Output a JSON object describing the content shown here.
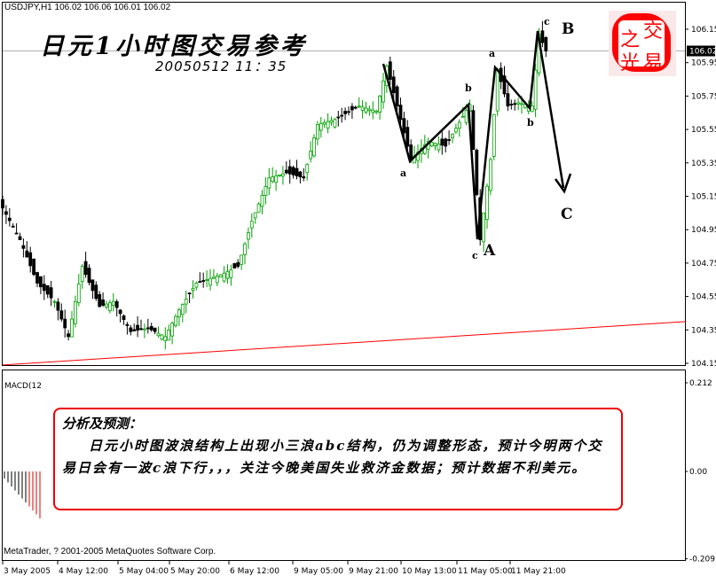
{
  "header": {
    "symbol_line": "USDJPY,H1  106.02 106.06 106.01 106.02",
    "title": "日元1小时图交易参考",
    "datetime": "20050512 11：35"
  },
  "stamp": {
    "chars": [
      "交",
      "之",
      "光",
      "易"
    ]
  },
  "note": {
    "heading": "分析及预测：",
    "body": "日元小时图波浪结构上出现小三浪abc结构，仍为调整形态，预计今明两个交易日会有一波c浪下行，，，关注今晚美国失业救济金数据；预计数据不利美元。"
  },
  "macd": {
    "label": "MACD(12"
  },
  "footer": {
    "copyright": "MetaTrader, ? 2001-2005 MetaQuotes Software Corp."
  },
  "colors": {
    "up": "#00a000",
    "down": "#000000",
    "trendline": "#ff0000",
    "accent": "#ff0000"
  },
  "chart_data": {
    "type": "candlestick",
    "symbol": "USDJPY",
    "timeframe": "H1",
    "current_price": 106.02,
    "y_ticks": [
      "106.15",
      "105.95",
      "105.75",
      "105.55",
      "105.35",
      "105.15",
      "104.95",
      "104.75",
      "104.55",
      "104.35",
      "104.15"
    ],
    "ylim": [
      104.13,
      106.24
    ],
    "x_ticks": [
      "3 May 2005",
      "4 May 12:00",
      "5 May 04:00",
      "5 May 20:00",
      "6 May 12:00",
      "9 May 05:00",
      "9 May 21:00",
      "10 May 13:00",
      "11 May 05:00",
      "11 May 21:00"
    ],
    "close_path": [
      [
        0,
        105.08
      ],
      [
        5,
        104.89
      ],
      [
        10,
        104.63
      ],
      [
        15,
        104.52
      ],
      [
        19,
        104.31
      ],
      [
        23,
        104.73
      ],
      [
        28,
        104.49
      ],
      [
        32,
        104.52
      ],
      [
        37,
        104.34
      ],
      [
        42,
        104.36
      ],
      [
        47,
        104.31
      ],
      [
        51,
        104.47
      ],
      [
        56,
        104.63
      ],
      [
        63,
        104.68
      ],
      [
        68,
        104.73
      ],
      [
        72,
        105.0
      ],
      [
        77,
        105.26
      ],
      [
        82,
        105.29
      ],
      [
        87,
        105.26
      ],
      [
        91,
        105.58
      ],
      [
        96,
        105.61
      ],
      [
        103,
        105.69
      ],
      [
        108,
        105.66
      ],
      [
        111,
        105.93
      ],
      [
        118,
        105.37
      ],
      [
        123,
        105.48
      ],
      [
        128,
        105.45
      ],
      [
        135,
        105.7
      ],
      [
        138,
        104.89
      ],
      [
        141,
        105.37
      ],
      [
        143,
        105.91
      ],
      [
        146,
        105.69
      ],
      [
        149,
        105.71
      ],
      [
        153,
        105.69
      ],
      [
        155,
        106.12
      ],
      [
        157,
        106.02
      ]
    ],
    "trendline": [
      [
        0,
        104.14
      ],
      [
        197,
        104.4
      ]
    ],
    "waves": [
      {
        "label": "a",
        "price": 105.37
      },
      {
        "label": "b",
        "price": 105.7
      },
      {
        "label": "c",
        "price": 104.89
      },
      {
        "label": "A",
        "price": 104.89
      },
      {
        "label": "a",
        "price": 105.93
      },
      {
        "label": "b",
        "price": 105.69
      },
      {
        "label": "c",
        "price": 106.15
      },
      {
        "label": "B",
        "price": 106.15
      },
      {
        "label": "C",
        "price": 105.15
      }
    ],
    "macd_ticks": [
      "0.212",
      "0.00",
      "-0.209"
    ]
  }
}
